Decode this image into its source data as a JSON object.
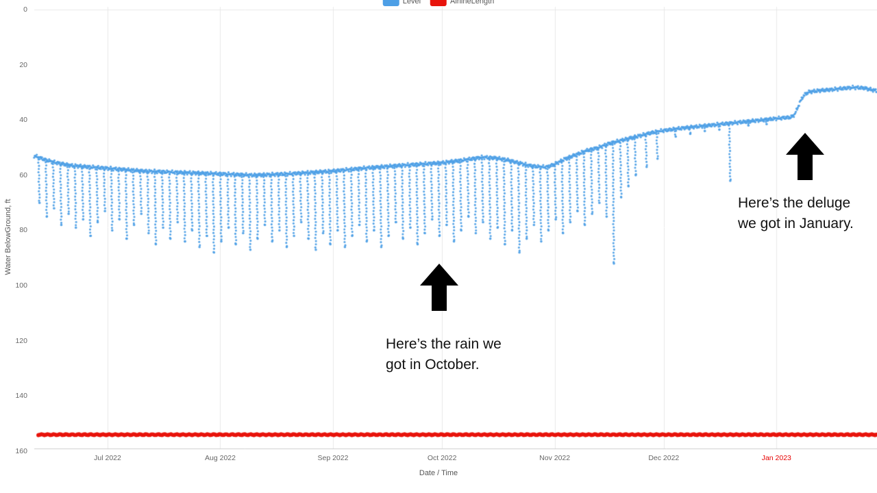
{
  "page": {
    "background": "#ffffff"
  },
  "legend": {
    "items": [
      {
        "label": "Level",
        "color": "#4D9FE6"
      },
      {
        "label": "AirlineLength",
        "color": "#E8140C"
      }
    ]
  },
  "annotations": {
    "october": {
      "line1": "Here’s the rain we",
      "line2": "got in October."
    },
    "january": {
      "line1": "Here’s the deluge",
      "line2": "we got in January."
    }
  },
  "chart_data": {
    "type": "scatter",
    "title": "",
    "xlabel": "Date / Time",
    "ylabel": "Water BelowGround, ft",
    "y_inverted": true,
    "ylim": [
      0,
      160
    ],
    "y_ticks": [
      0,
      20,
      40,
      60,
      80,
      100,
      120,
      140,
      160
    ],
    "x_range_days": [
      -20.2,
      211.6
    ],
    "x_day_zero": "2022-07-01",
    "x_ticks": [
      {
        "label": "Jul 2022",
        "day": 0,
        "color": "#666666"
      },
      {
        "label": "Aug 2022",
        "day": 31,
        "color": "#666666"
      },
      {
        "label": "Sep 2022",
        "day": 62,
        "color": "#666666"
      },
      {
        "label": "Oct 2022",
        "day": 92,
        "color": "#666666"
      },
      {
        "label": "Nov 2022",
        "day": 123,
        "color": "#666666"
      },
      {
        "label": "Dec 2022",
        "day": 153,
        "color": "#666666"
      },
      {
        "label": "Jan 2023",
        "day": 184,
        "color": "#e60000"
      }
    ],
    "grid": "vertical-monthly",
    "legend_position": "top-center",
    "series": [
      {
        "name": "Level",
        "type": "scatter",
        "color": "#4D9FE6",
        "description": "Depth to water below ground; daily pumping drawdown spikes in summer, recovery after October rain, sharp rise after January deluge",
        "baseline_keypoints": [
          [
            -20,
            53
          ],
          [
            -17,
            54.5
          ],
          [
            -14,
            55.5
          ],
          [
            -10,
            56.5
          ],
          [
            -5,
            57
          ],
          [
            0,
            57.5
          ],
          [
            10,
            58.5
          ],
          [
            20,
            59
          ],
          [
            31,
            59.5
          ],
          [
            40,
            60
          ],
          [
            50,
            59.5
          ],
          [
            62,
            58.5
          ],
          [
            70,
            57.5
          ],
          [
            80,
            56.5
          ],
          [
            92,
            55.5
          ],
          [
            98,
            54.5
          ],
          [
            103,
            53.5
          ],
          [
            107,
            53.8
          ],
          [
            110,
            54.5
          ],
          [
            113,
            55.5
          ],
          [
            116,
            56.5
          ],
          [
            119,
            57
          ],
          [
            121,
            57
          ],
          [
            123,
            56
          ],
          [
            126,
            54
          ],
          [
            129,
            52.5
          ],
          [
            132,
            51
          ],
          [
            135,
            50
          ],
          [
            138,
            48.5
          ],
          [
            141,
            47.5
          ],
          [
            144,
            46.5
          ],
          [
            147,
            45.5
          ],
          [
            150,
            44.5
          ],
          [
            153,
            43.8
          ],
          [
            156,
            43.3
          ],
          [
            159,
            42.8
          ],
          [
            162,
            42.4
          ],
          [
            165,
            42
          ],
          [
            168,
            41.6
          ],
          [
            171,
            41.2
          ],
          [
            174,
            40.8
          ],
          [
            177,
            40.4
          ],
          [
            180,
            40
          ],
          [
            183,
            39.6
          ],
          [
            186,
            39.2
          ],
          [
            188,
            39
          ],
          [
            189,
            38
          ],
          [
            190,
            35
          ],
          [
            191,
            32
          ],
          [
            192,
            30.5
          ],
          [
            193,
            29.8
          ],
          [
            196,
            29.3
          ],
          [
            199,
            29
          ],
          [
            202,
            28.6
          ],
          [
            205,
            28.2
          ],
          [
            208,
            28.4
          ],
          [
            211,
            29.3
          ],
          [
            212,
            29.4
          ]
        ],
        "drawdown_spikes": [
          [
            -19,
            70
          ],
          [
            -17,
            75
          ],
          [
            -15,
            72
          ],
          [
            -13,
            78
          ],
          [
            -11,
            74
          ],
          [
            -9,
            79
          ],
          [
            -7,
            76
          ],
          [
            -5,
            82
          ],
          [
            -3,
            77
          ],
          [
            -1,
            73
          ],
          [
            1,
            80
          ],
          [
            3,
            76
          ],
          [
            5,
            83
          ],
          [
            7,
            78
          ],
          [
            9,
            74
          ],
          [
            11,
            81
          ],
          [
            13,
            85
          ],
          [
            15,
            79
          ],
          [
            17,
            83
          ],
          [
            19,
            77
          ],
          [
            21,
            84
          ],
          [
            23,
            80
          ],
          [
            25,
            86
          ],
          [
            27,
            82
          ],
          [
            29,
            88
          ],
          [
            31,
            84
          ],
          [
            33,
            79
          ],
          [
            35,
            85
          ],
          [
            37,
            81
          ],
          [
            39,
            87
          ],
          [
            41,
            83
          ],
          [
            43,
            78
          ],
          [
            45,
            84
          ],
          [
            47,
            80
          ],
          [
            49,
            86
          ],
          [
            51,
            82
          ],
          [
            53,
            77
          ],
          [
            55,
            83
          ],
          [
            57,
            87
          ],
          [
            59,
            81
          ],
          [
            61,
            85
          ],
          [
            63,
            80
          ],
          [
            65,
            86
          ],
          [
            67,
            82
          ],
          [
            69,
            78
          ],
          [
            71,
            84
          ],
          [
            73,
            80
          ],
          [
            75,
            86
          ],
          [
            77,
            82
          ],
          [
            79,
            77
          ],
          [
            81,
            83
          ],
          [
            83,
            79
          ],
          [
            85,
            85
          ],
          [
            87,
            81
          ],
          [
            89,
            76
          ],
          [
            91,
            82
          ],
          [
            93,
            78
          ],
          [
            95,
            84
          ],
          [
            97,
            80
          ],
          [
            99,
            75
          ],
          [
            101,
            81
          ],
          [
            103,
            77
          ],
          [
            105,
            83
          ],
          [
            107,
            79
          ],
          [
            109,
            85
          ],
          [
            111,
            80
          ],
          [
            113,
            88
          ],
          [
            115,
            83
          ],
          [
            117,
            78
          ],
          [
            119,
            84
          ],
          [
            121,
            80
          ],
          [
            123,
            76
          ],
          [
            125,
            81
          ],
          [
            127,
            77
          ],
          [
            129,
            73
          ],
          [
            131,
            78
          ],
          [
            133,
            74
          ],
          [
            135,
            70
          ],
          [
            137,
            75
          ],
          [
            139,
            92
          ],
          [
            141,
            68
          ],
          [
            143,
            64
          ],
          [
            145,
            60
          ],
          [
            148,
            57
          ],
          [
            151,
            54
          ],
          [
            156,
            46
          ],
          [
            160,
            45
          ],
          [
            164,
            44
          ],
          [
            168,
            43.5
          ],
          [
            171,
            62
          ],
          [
            176,
            42
          ],
          [
            181,
            41.5
          ]
        ]
      },
      {
        "name": "AirlineLength",
        "type": "scatter",
        "color": "#E8140C",
        "constant_value_ft": 154
      }
    ],
    "chart_annotations": [
      {
        "text": "Here’s the rain we got in October.",
        "arrow_points_to_day": 92
      },
      {
        "text": "Here’s the deluge we got in January.",
        "arrow_points_to_day": 191
      }
    ]
  }
}
